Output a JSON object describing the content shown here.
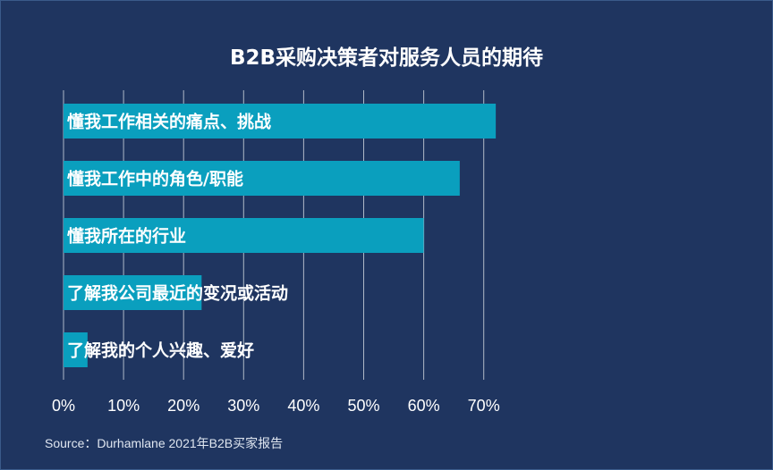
{
  "colors": {
    "background": "#1f3560",
    "bar": "#0a9fbe",
    "grid": "#c8cfda",
    "text": "#ffffff"
  },
  "chart_data": {
    "type": "bar",
    "orientation": "horizontal",
    "title": "B2B采购决策者对服务人员的期待",
    "categories": [
      "懂我工作相关的痛点、挑战",
      "懂我工作中的角色/职能",
      "懂我所在的行业",
      "了解我公司最近的变况或活动",
      "了解我的个人兴趣、爱好"
    ],
    "values": [
      72,
      66,
      60,
      23,
      4
    ],
    "unit": "%",
    "xlim": [
      0,
      70
    ],
    "xticks": [
      0,
      10,
      20,
      30,
      40,
      50,
      60,
      70
    ],
    "xtick_labels": [
      "0%",
      "10%",
      "20%",
      "30%",
      "40%",
      "50%",
      "60%",
      "70%"
    ],
    "grid": true,
    "source": "Source：Durhamlane 2021年B2B买家报告"
  }
}
